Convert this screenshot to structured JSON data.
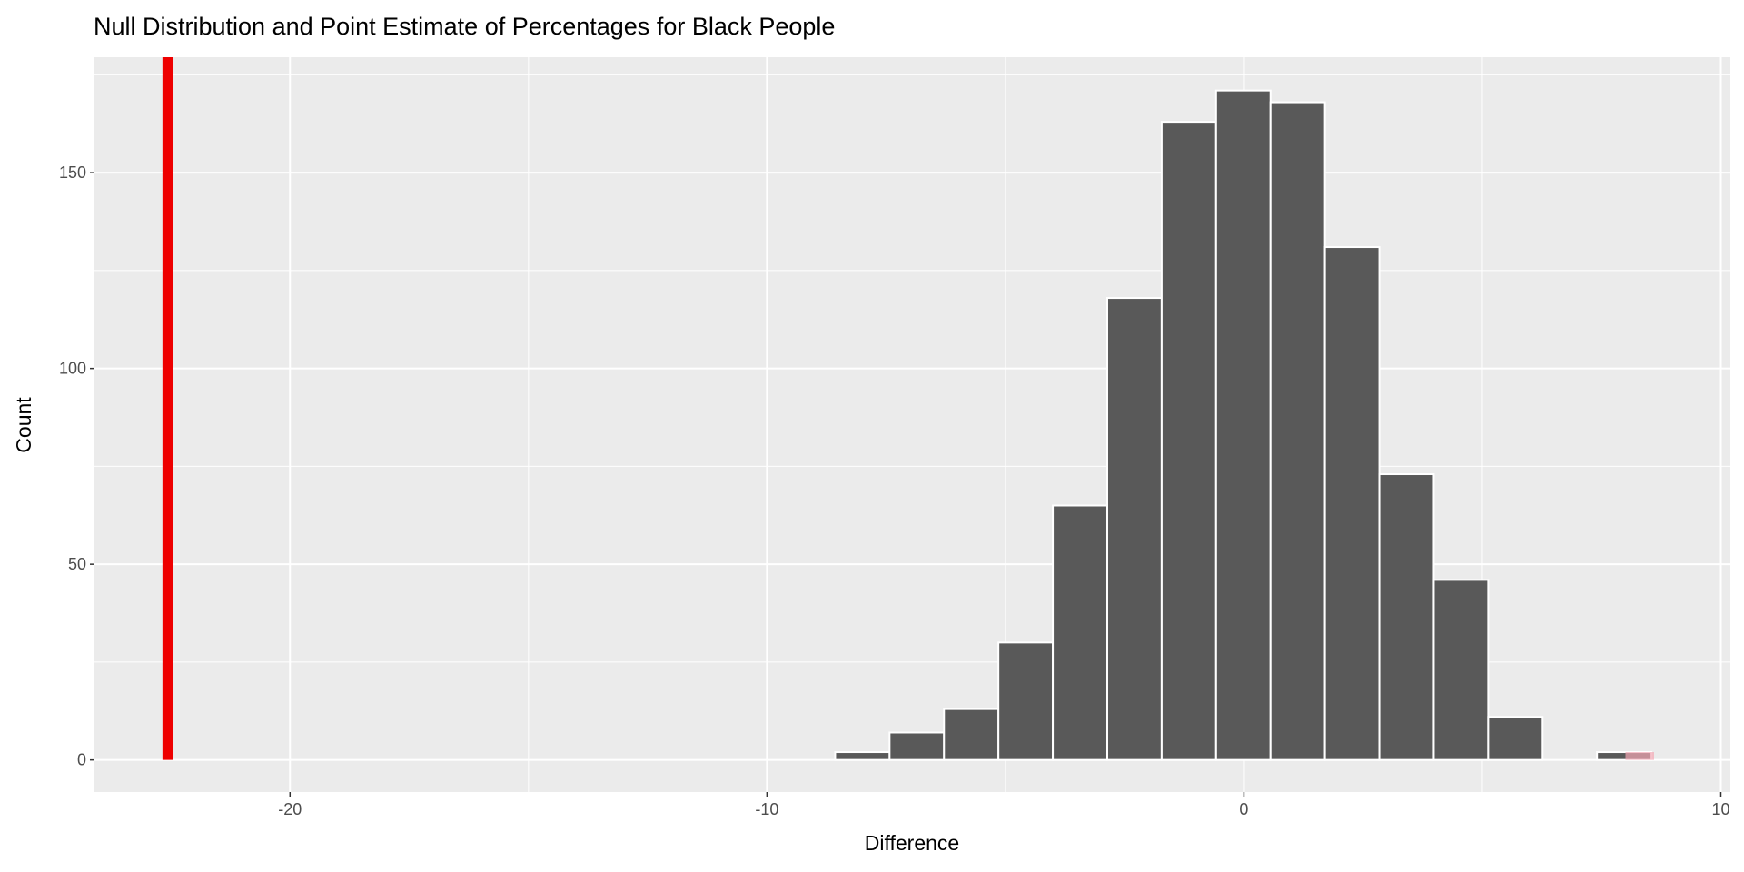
{
  "chart_data": {
    "type": "bar",
    "title": "Null Distribution and Point Estimate of Percentages for Black People",
    "xlabel": "Difference",
    "ylabel": "Count",
    "xlim": [
      -24.1,
      10.2
    ],
    "ylim": [
      -8.2,
      179.5
    ],
    "x_ticks": [
      -20,
      -10,
      0,
      10
    ],
    "y_ticks": [
      0,
      50,
      100,
      150
    ],
    "grid": true,
    "bin_start": -8.57,
    "bin_width": 1.141,
    "values": [
      2,
      7,
      13,
      30,
      65,
      118,
      163,
      171,
      168,
      131,
      73,
      46,
      11,
      0,
      2
    ],
    "point_estimate": -22.56,
    "shaded_region": [
      8.0,
      8.6
    ],
    "colors": {
      "panel": "#ebebeb",
      "grid": "#ffffff",
      "bar_fill": "#595959",
      "bar_outline": "#ffffff",
      "point_estimate_line": "#ee0000",
      "shade": "#f4a6b4"
    }
  }
}
